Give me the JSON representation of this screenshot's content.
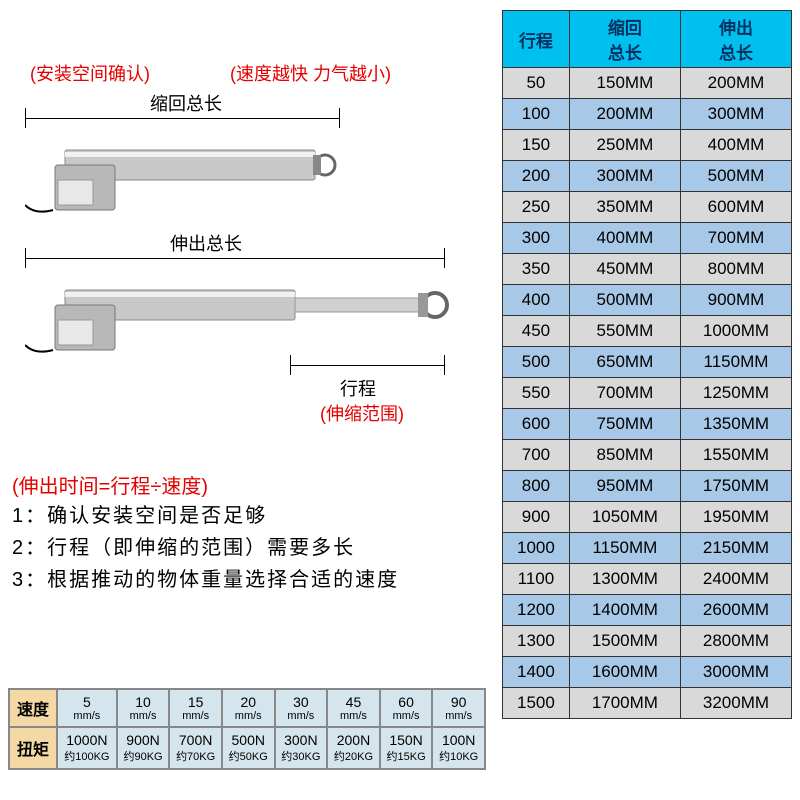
{
  "labels": {
    "install": "(安装空间确认)",
    "speedForce": "(速度越快 力气越小)",
    "retractLen": "缩回总长",
    "extendLen": "伸出总长",
    "stroke": "行程",
    "strokeRange": "(伸缩范围)",
    "formula": "(伸出时间=行程÷速度)",
    "inst1": "1：确认安装空间是否足够",
    "inst2": "2：行程（即伸缩的范围）需要多长",
    "inst3": "3：根据推动的物体重量选择合适的速度"
  },
  "speedTable": {
    "speedHdr": "速度",
    "torqueHdr": "扭矩",
    "speeds": [
      "5",
      "10",
      "15",
      "20",
      "30",
      "45",
      "60",
      "90"
    ],
    "unit": "mm/s",
    "forces": [
      "1000N",
      "900N",
      "700N",
      "500N",
      "300N",
      "200N",
      "150N",
      "100N"
    ],
    "kgs": [
      "约100KG",
      "约90KG",
      "约70KG",
      "约50KG",
      "约30KG",
      "约20KG",
      "约15KG",
      "约10KG"
    ]
  },
  "sizeTable": {
    "h1": "行程",
    "h2": "缩回\n总长",
    "h3": "伸出\n总长",
    "rows": [
      [
        "50",
        "150MM",
        "200MM"
      ],
      [
        "100",
        "200MM",
        "300MM"
      ],
      [
        "150",
        "250MM",
        "400MM"
      ],
      [
        "200",
        "300MM",
        "500MM"
      ],
      [
        "250",
        "350MM",
        "600MM"
      ],
      [
        "300",
        "400MM",
        "700MM"
      ],
      [
        "350",
        "450MM",
        "800MM"
      ],
      [
        "400",
        "500MM",
        "900MM"
      ],
      [
        "450",
        "550MM",
        "1000MM"
      ],
      [
        "500",
        "650MM",
        "1150MM"
      ],
      [
        "550",
        "700MM",
        "1250MM"
      ],
      [
        "600",
        "750MM",
        "1350MM"
      ],
      [
        "700",
        "850MM",
        "1550MM"
      ],
      [
        "800",
        "950MM",
        "1750MM"
      ],
      [
        "900",
        "1050MM",
        "1950MM"
      ],
      [
        "1000",
        "1150MM",
        "2150MM"
      ],
      [
        "1100",
        "1300MM",
        "2400MM"
      ],
      [
        "1200",
        "1400MM",
        "2600MM"
      ],
      [
        "1300",
        "1500MM",
        "2800MM"
      ],
      [
        "1400",
        "1600MM",
        "3000MM"
      ],
      [
        "1500",
        "1700MM",
        "3200MM"
      ]
    ]
  },
  "colors": {
    "red": "#e60000",
    "tableHeaderBg": "#00c0f0",
    "rowA": "#d9d9d9",
    "rowB": "#a8c8e8",
    "speedHdrBg": "#f4d9a6",
    "speedCellBg": "#d4e5ed"
  }
}
